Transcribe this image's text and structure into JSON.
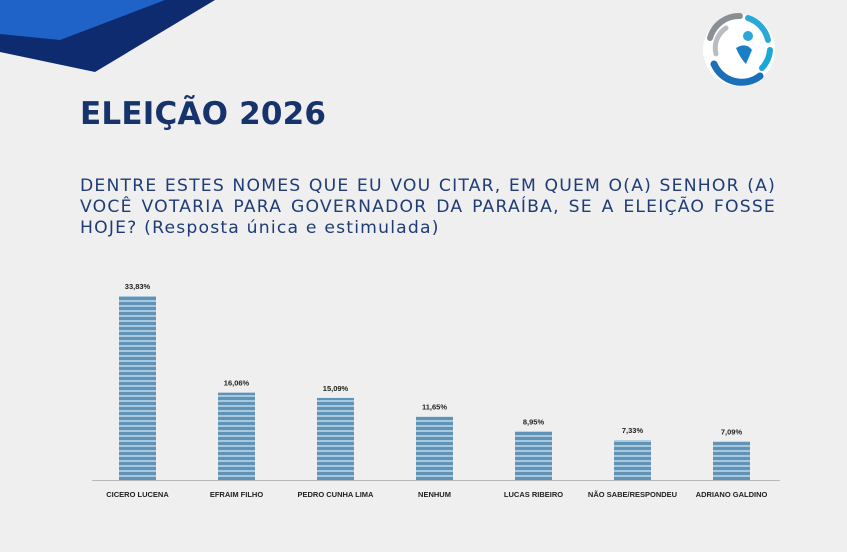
{
  "slide": {
    "title": "ELEIÇÃO 2026",
    "question": "DENTRE ESTES NOMES QUE EU VOU CITAR, EM QUEM O(A) SENHOR (A) VOCÊ VOTARIA PARA GOVERNADOR DA PARAÍBA, SE A ELEIÇÃO FOSSE HOJE? (Resposta única e estimulada)"
  },
  "colors": {
    "title": "#16336b",
    "accent_dark": "#0d2b6e",
    "accent_light": "#1f63c9",
    "bar": "#6f9fbe"
  },
  "icons": {
    "logo": "circular-blue-person-logo-icon"
  },
  "chart_data": {
    "type": "bar",
    "categories": [
      "CICERO LUCENA",
      "EFRAIM FILHO",
      "PEDRO CUNHA LIMA",
      "NENHUM",
      "LUCAS RIBEIRO",
      "NÃO SABE/RESPONDEU",
      "ADRIANO GALDINO"
    ],
    "values": [
      33.83,
      16.06,
      15.09,
      11.65,
      8.95,
      7.33,
      7.09
    ],
    "value_labels": [
      "33,83%",
      "16,06%",
      "15,09%",
      "11,65%",
      "8,95%",
      "7,33%",
      "7,09%"
    ],
    "title": "",
    "xlabel": "",
    "ylabel": "",
    "ylim": [
      0,
      33.83
    ],
    "grid": false,
    "legend": "none"
  }
}
